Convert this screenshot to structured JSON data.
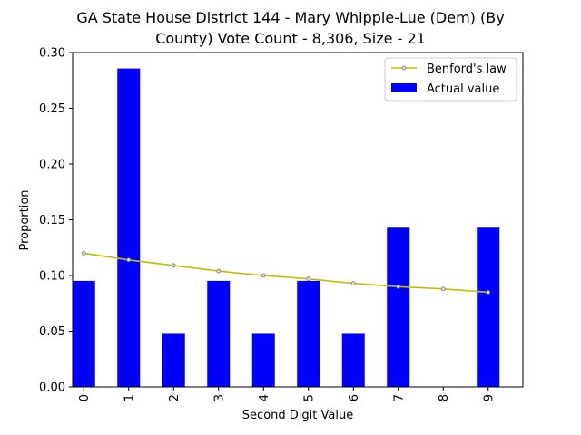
{
  "chart_data": {
    "type": "bar",
    "title_lines": [
      "GA State House District 144 - Mary Whipple-Lue (Dem) (By",
      "County) Vote Count - 8,306, Size - 21"
    ],
    "xlabel": "Second Digit Value",
    "ylabel": "Proportion",
    "categories": [
      "0",
      "1",
      "2",
      "3",
      "4",
      "5",
      "6",
      "7",
      "8",
      "9"
    ],
    "ylim": [
      0,
      0.3
    ],
    "yticks": [
      "0.00",
      "0.05",
      "0.10",
      "0.15",
      "0.20",
      "0.25",
      "0.30"
    ],
    "grid": false,
    "legend_position": "top-right",
    "series": [
      {
        "name": "Actual value",
        "kind": "bar",
        "color": "#0000ff",
        "values": [
          0.0952,
          0.2857,
          0.0476,
          0.0952,
          0.0476,
          0.0952,
          0.0476,
          0.1429,
          0.0,
          0.1429
        ]
      },
      {
        "name": "Benford's law",
        "kind": "line",
        "color": "#bfbf00",
        "values": [
          0.12,
          0.114,
          0.109,
          0.104,
          0.1,
          0.097,
          0.093,
          0.09,
          0.088,
          0.085
        ]
      }
    ]
  }
}
